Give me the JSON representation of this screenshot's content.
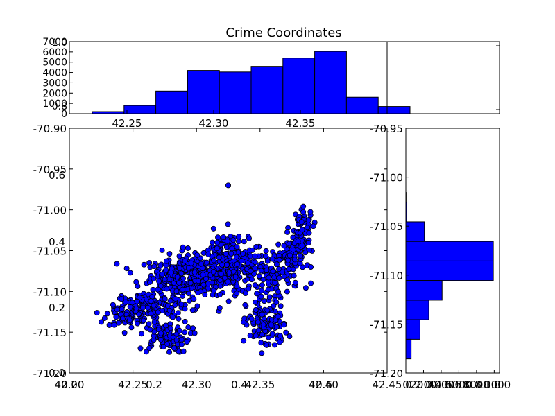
{
  "chart_data": [
    {
      "type": "bar",
      "title": "Crime Coordinates",
      "orientation": "vertical",
      "bins": [
        {
          "x0": 42.2325,
          "x1": 42.265,
          "count": 200
        },
        {
          "x0": 42.265,
          "x1": 42.2975,
          "count": 800
        },
        {
          "x0": 42.2975,
          "x1": 42.33,
          "count": 2200
        },
        {
          "x0": 42.33,
          "x1": 42.3625,
          "count": 4200
        },
        {
          "x0": 42.3625,
          "x1": 42.395,
          "count": 4050
        },
        {
          "x0": 42.395,
          "x1": 42.4275,
          "count": 4600
        },
        {
          "x0": 42.4275,
          "x1": 42.46,
          "count": 5400
        },
        {
          "x0": 42.46,
          "x1": 42.4925,
          "count": 6050
        },
        {
          "x0": 42.4925,
          "x1": 42.525,
          "count": 1600
        },
        {
          "x0": 42.525,
          "x1": 42.5575,
          "count": 700
        }
      ],
      "ylim": [
        0,
        7000
      ],
      "yticks": [
        "0",
        "1000",
        "2000",
        "3000",
        "4000",
        "5000",
        "6000",
        "7000"
      ],
      "xticks": [
        "42.25",
        "42.30",
        "42.35"
      ],
      "overlay_ticks": [
        "0.8",
        "1.0"
      ],
      "color": "#0000ff"
    },
    {
      "type": "bar",
      "orientation": "horizontal",
      "bins": [
        {
          "y0": -70.99,
          "y1": -71.0,
          "count": 1
        },
        {
          "y0": -71.0,
          "y1": -71.01,
          "count": 30
        },
        {
          "y0": -71.01,
          "y1": -71.03,
          "count": 100
        },
        {
          "y0": -71.03,
          "y1": -71.05,
          "count": 2100
        },
        {
          "y0": -71.05,
          "y1": -71.07,
          "count": 9900
        },
        {
          "y0": -71.07,
          "y1": -71.09,
          "count": 9900
        },
        {
          "y0": -71.09,
          "y1": -71.11,
          "count": 4100
        },
        {
          "y0": -71.11,
          "y1": -71.13,
          "count": 2600
        },
        {
          "y0": -71.13,
          "y1": -71.15,
          "count": 1600
        },
        {
          "y0": -71.15,
          "y1": -71.17,
          "count": 600
        }
      ],
      "ylim": [
        -71.2,
        -70.95
      ],
      "yticks": [
        "-70.95",
        "-71.00",
        "-71.05",
        "-71.10",
        "-71.15",
        "-71.20"
      ],
      "xticks": [
        "0",
        "2000",
        "4000",
        "6000",
        "8000",
        "10000"
      ],
      "overlay_ticks": [
        "0.2",
        "0.4",
        "0.6",
        "0.8",
        "1.0"
      ],
      "color": "#0000ff"
    },
    {
      "type": "scatter",
      "xlim": [
        42.2,
        42.45
      ],
      "ylim": [
        -71.2,
        -70.9
      ],
      "xticks": [
        "42.20",
        "42.25",
        "42.30",
        "42.35",
        "42.40",
        "42.45"
      ],
      "yticks": [
        "-70.90",
        "-70.95",
        "-71.00",
        "-71.05",
        "-71.10",
        "-71.15",
        "-71.20"
      ],
      "overlay_xticks": [
        "0.0",
        "0.2",
        "0.4",
        "0.6",
        "0.8"
      ],
      "overlay_yticks": [
        "0.0",
        "0.2",
        "0.4",
        "0.6"
      ],
      "marker_color": "#0000ff",
      "clusters": [
        {
          "cx": 42.3,
          "cy": -71.08,
          "sx": 0.018,
          "sy": 0.012,
          "n": 260
        },
        {
          "cx": 42.33,
          "cy": -71.07,
          "sx": 0.012,
          "sy": 0.016,
          "n": 160
        },
        {
          "cx": 42.285,
          "cy": -71.09,
          "sx": 0.014,
          "sy": 0.018,
          "n": 120
        },
        {
          "cx": 42.26,
          "cy": -71.12,
          "sx": 0.012,
          "sy": 0.01,
          "n": 110
        },
        {
          "cx": 42.245,
          "cy": -71.128,
          "sx": 0.008,
          "sy": 0.008,
          "n": 60
        },
        {
          "cx": 42.275,
          "cy": -71.155,
          "sx": 0.01,
          "sy": 0.01,
          "n": 90
        },
        {
          "cx": 42.355,
          "cy": -71.14,
          "sx": 0.008,
          "sy": 0.016,
          "n": 120
        },
        {
          "cx": 42.37,
          "cy": -71.06,
          "sx": 0.008,
          "sy": 0.008,
          "n": 70
        },
        {
          "cx": 42.38,
          "cy": -71.04,
          "sx": 0.005,
          "sy": 0.008,
          "n": 50
        },
        {
          "cx": 42.36,
          "cy": -71.085,
          "sx": 0.01,
          "sy": 0.01,
          "n": 70
        },
        {
          "cx": 42.385,
          "cy": -71.015,
          "sx": 0.004,
          "sy": 0.008,
          "n": 30
        },
        {
          "cx": 42.32,
          "cy": -71.05,
          "sx": 0.006,
          "sy": 0.012,
          "n": 60
        }
      ],
      "outliers": [
        {
          "x": 42.325,
          "y": -70.97
        },
        {
          "x": 42.392,
          "y": -71.02
        },
        {
          "x": 42.39,
          "y": -71.07
        },
        {
          "x": 42.39,
          "y": -71.09
        }
      ]
    }
  ]
}
